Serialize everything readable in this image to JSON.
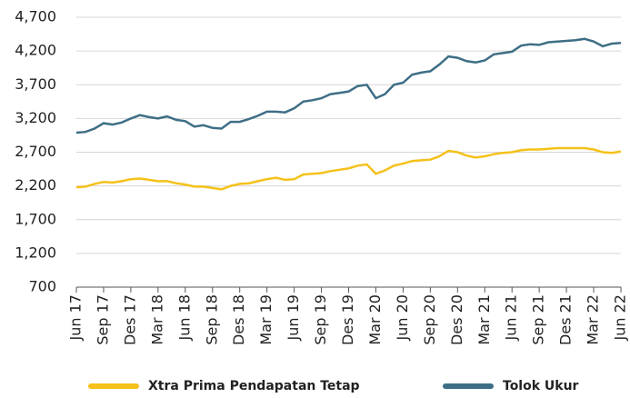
{
  "chart_data": {
    "type": "line",
    "categories": [
      "Jun 17",
      null,
      null,
      "Sep 17",
      null,
      null,
      "Des 17",
      null,
      null,
      "Mar 18",
      null,
      null,
      "Jun 18",
      null,
      null,
      "Sep 18",
      null,
      null,
      "Des 18",
      null,
      null,
      "Mar 19",
      null,
      null,
      "Jun 19",
      null,
      null,
      "Sep 19",
      null,
      null,
      "Des 19",
      null,
      null,
      "Mar 20",
      null,
      null,
      "Jun 20",
      null,
      null,
      "Sep 20",
      null,
      null,
      "Des 20",
      null,
      null,
      "Mar 21",
      null,
      null,
      "Jun 21",
      null,
      null,
      "Sep 21",
      null,
      null,
      "Des 21",
      null,
      null,
      "Mar 22",
      null,
      null,
      "Jun 22"
    ],
    "series": [
      {
        "name": "Xtra Prima Pendapatan Tetap",
        "color": "#f5c11a",
        "values": [
          2180,
          2190,
          2230,
          2260,
          2250,
          2270,
          2300,
          2310,
          2290,
          2270,
          2270,
          2240,
          2220,
          2190,
          2190,
          2170,
          2150,
          2200,
          2230,
          2240,
          2270,
          2300,
          2320,
          2290,
          2300,
          2370,
          2380,
          2390,
          2420,
          2440,
          2460,
          2500,
          2520,
          2380,
          2430,
          2500,
          2530,
          2570,
          2580,
          2590,
          2640,
          2720,
          2700,
          2650,
          2620,
          2640,
          2670,
          2690,
          2700,
          2730,
          2740,
          2740,
          2750,
          2760,
          2760,
          2760,
          2760,
          2740,
          2700,
          2690,
          2710
        ]
      },
      {
        "name": "Tolok Ukur",
        "color": "#3e6e85",
        "values": [
          2990,
          3000,
          3050,
          3130,
          3110,
          3140,
          3200,
          3250,
          3220,
          3200,
          3230,
          3180,
          3160,
          3080,
          3100,
          3060,
          3050,
          3150,
          3150,
          3190,
          3240,
          3300,
          3300,
          3290,
          3350,
          3450,
          3470,
          3500,
          3560,
          3580,
          3600,
          3680,
          3700,
          3500,
          3560,
          3700,
          3730,
          3850,
          3880,
          3900,
          4000,
          4120,
          4100,
          4050,
          4030,
          4060,
          4150,
          4170,
          4190,
          4280,
          4300,
          4290,
          4330,
          4340,
          4350,
          4360,
          4380,
          4340,
          4270,
          4310,
          4320
        ]
      }
    ],
    "ylim": [
      700,
      4700
    ],
    "yticks": [
      700,
      {
        "value": 1200,
        "label": "1,200"
      },
      {
        "value": 1700,
        "label": "1,700"
      },
      {
        "value": 2200,
        "label": "2,200"
      },
      {
        "value": 2700,
        "label": "2,700"
      },
      {
        "value": 3200,
        "label": "3,200"
      },
      {
        "value": 3700,
        "label": "3,700"
      },
      {
        "value": 4200,
        "label": "4,200"
      },
      {
        "value": 4700,
        "label": "4,700"
      }
    ],
    "grid": true
  }
}
